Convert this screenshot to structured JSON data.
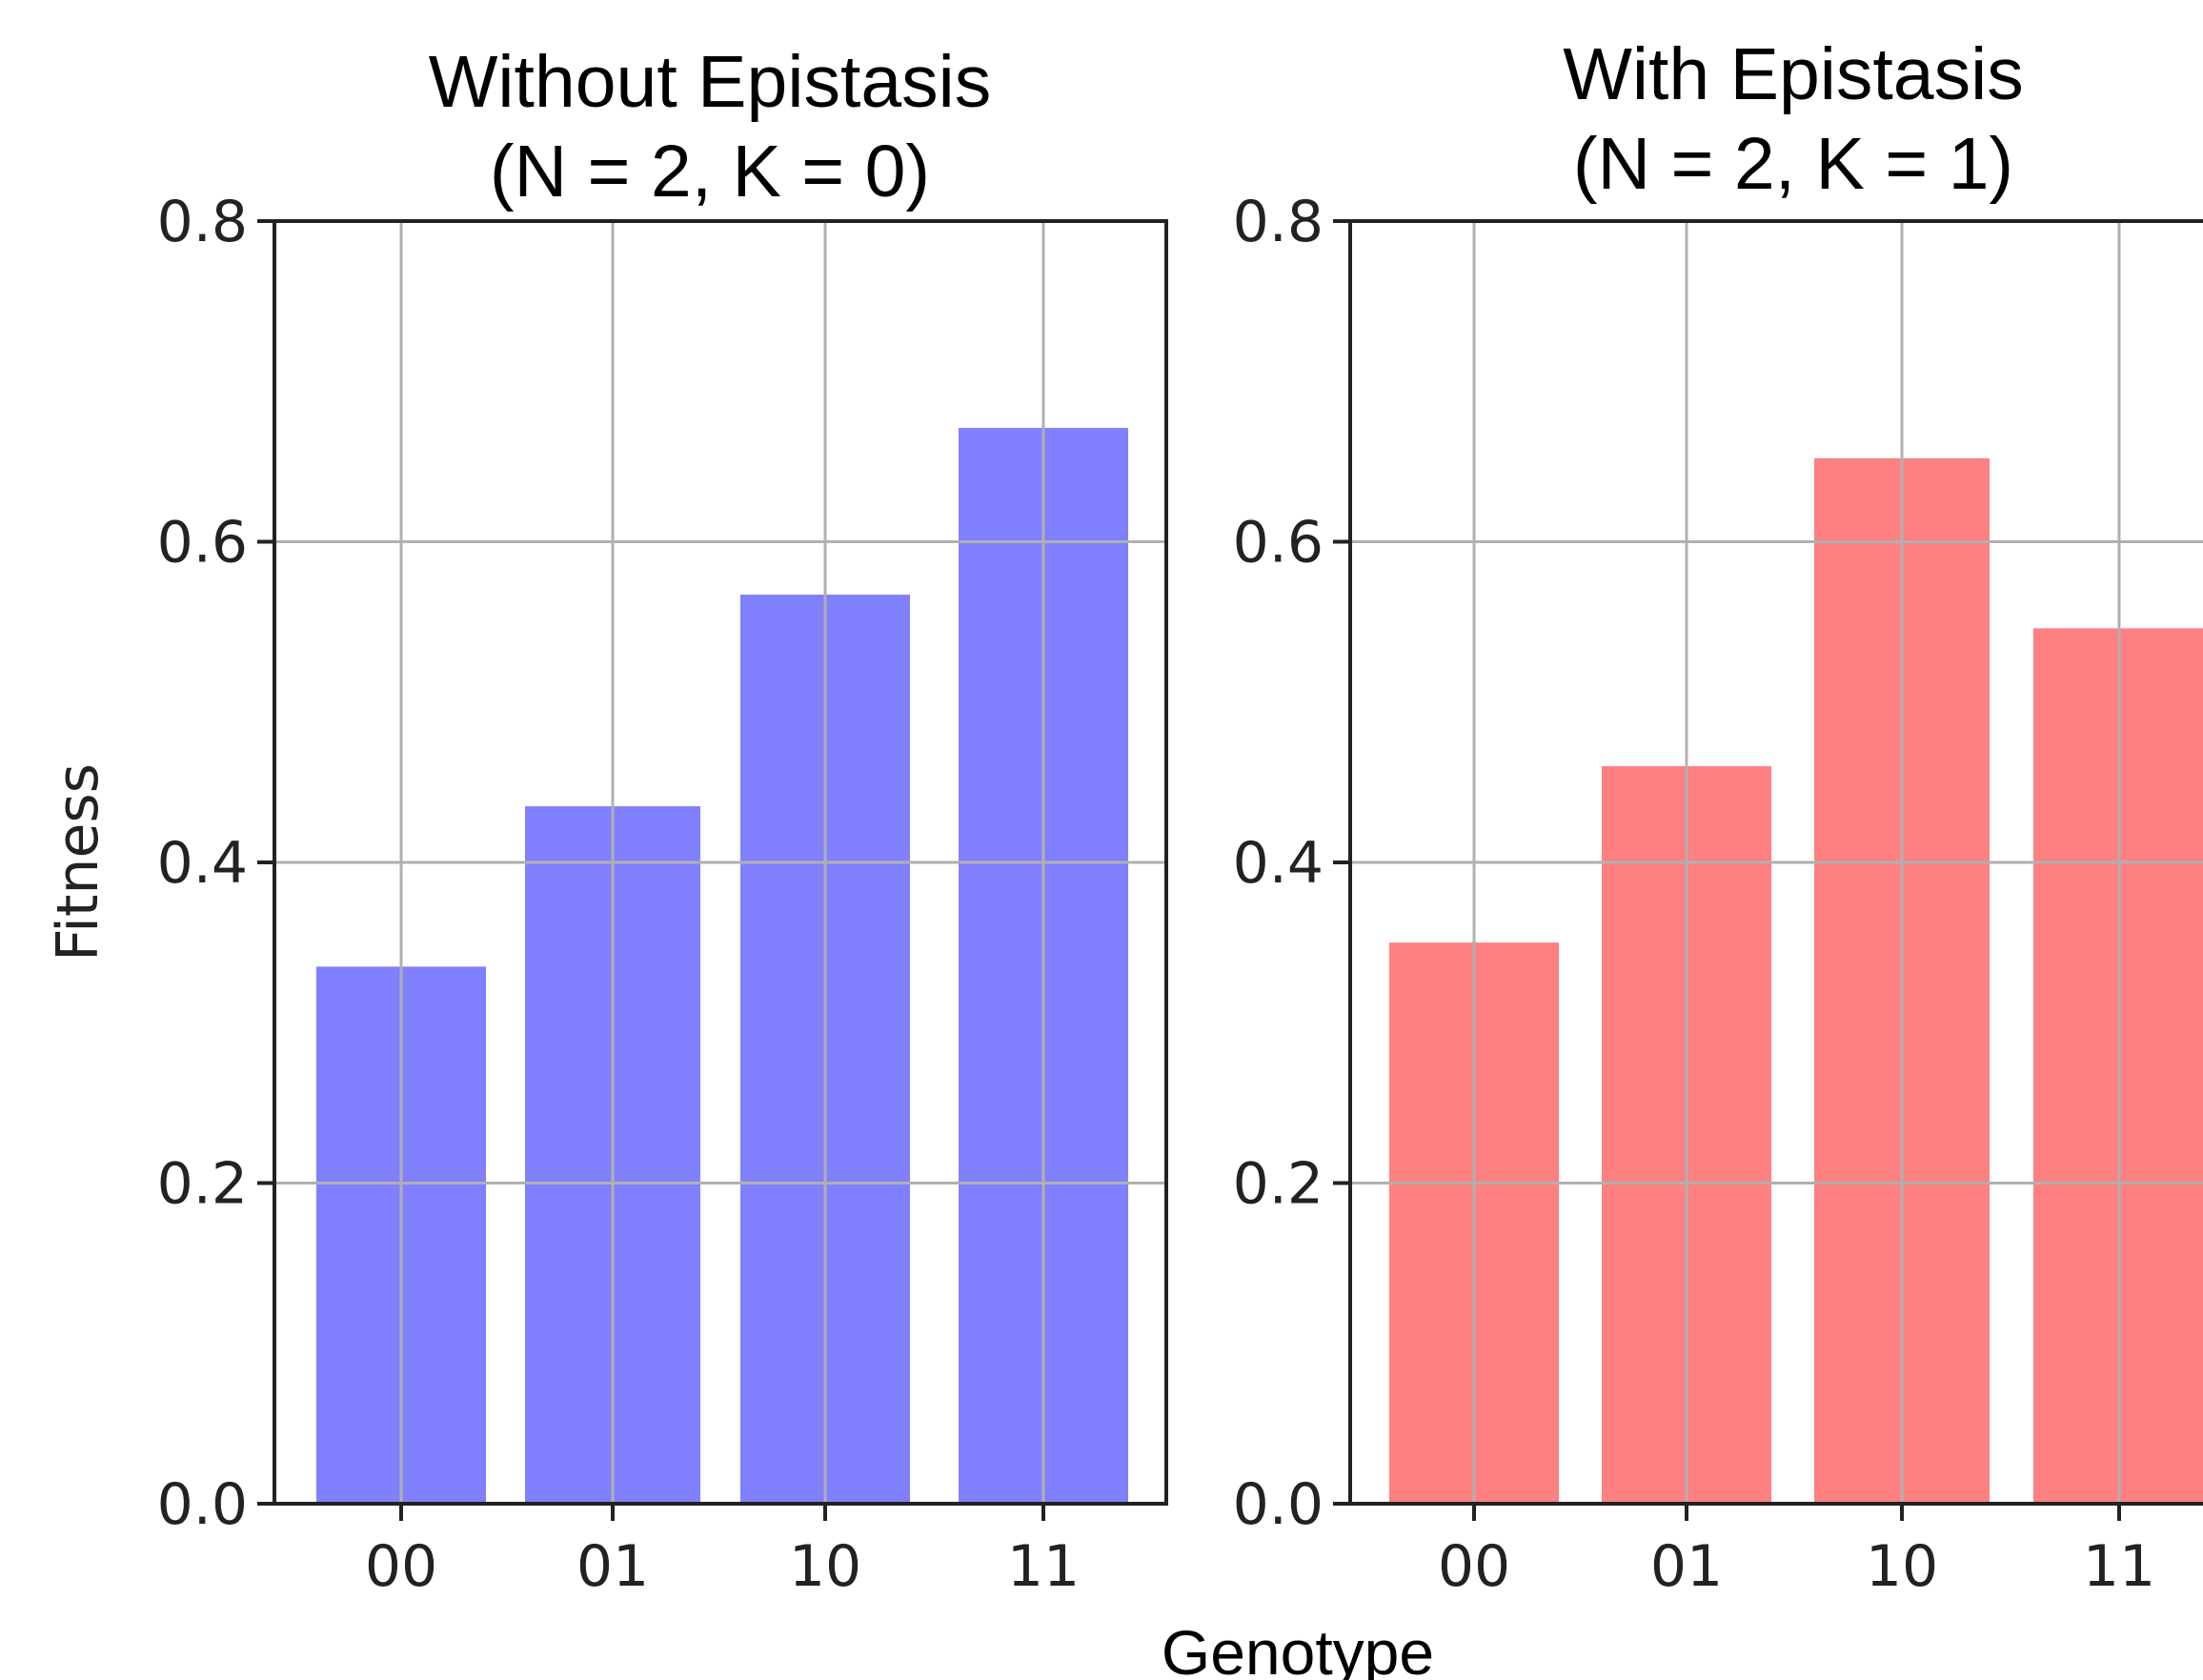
{
  "chart_data": [
    {
      "type": "bar",
      "title_line1": "Without Epistasis",
      "title_line2": "(N = 2, K = 0)",
      "categories": [
        "00",
        "01",
        "10",
        "11"
      ],
      "values": [
        0.335,
        0.435,
        0.567,
        0.671
      ],
      "bar_color": "#8080ff",
      "ylabel": "Fitness",
      "ylim": [
        0,
        0.8
      ],
      "yticks": [
        "0.0",
        "0.2",
        "0.4",
        "0.6",
        "0.8"
      ],
      "grid": true
    },
    {
      "type": "bar",
      "title_line1": "With Epistasis",
      "title_line2": "(N = 2, K = 1)",
      "categories": [
        "00",
        "01",
        "10",
        "11"
      ],
      "values": [
        0.35,
        0.46,
        0.652,
        0.546
      ],
      "bar_color": "#ff8080",
      "ylim": [
        0,
        0.8
      ],
      "yticks": [
        "0.0",
        "0.2",
        "0.4",
        "0.6",
        "0.8"
      ],
      "grid": true
    }
  ],
  "shared_xlabel": "Genotype"
}
